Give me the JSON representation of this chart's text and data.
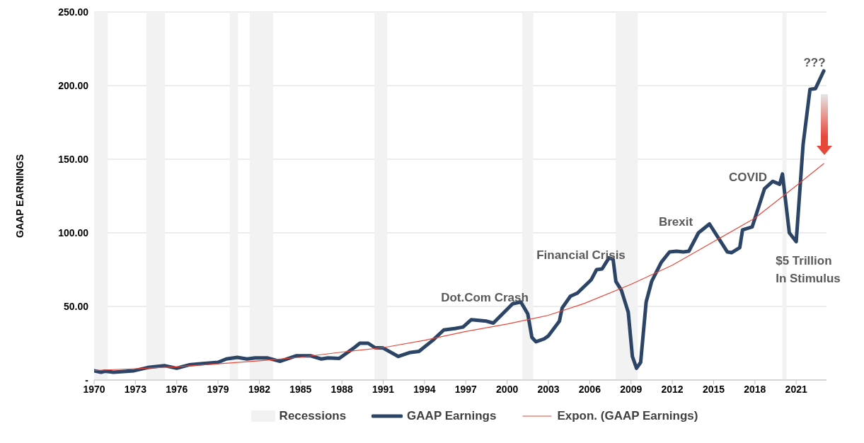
{
  "chart_data": {
    "type": "line",
    "ylabel": "GAAP EARNINGS",
    "xlim": [
      1970,
      2023.2
    ],
    "xticks": [
      1970,
      1973,
      1976,
      1979,
      1982,
      1985,
      1988,
      1991,
      1994,
      1997,
      2000,
      2003,
      2006,
      2009,
      2012,
      2015,
      2018,
      2021
    ],
    "ylim": [
      0,
      250
    ],
    "yticks": [
      {
        "value": 0,
        "label": "-"
      },
      {
        "value": 50,
        "label": "50.00"
      },
      {
        "value": 100,
        "label": "100.00"
      },
      {
        "value": 150,
        "label": "150.00"
      },
      {
        "value": 200,
        "label": "200.00"
      },
      {
        "value": 250,
        "label": "250.00"
      }
    ],
    "grid": "y",
    "legend": "bottom",
    "marker": "none",
    "line_style": "solid",
    "series": [
      {
        "name": "GAAP Earnings",
        "color": "#2c4566",
        "x": [
          1970.0,
          1970.5,
          1970.8,
          1971.4,
          1972.9,
          1973.9,
          1975.1,
          1976.0,
          1976.9,
          1977.9,
          1979.0,
          1979.6,
          1980.4,
          1981.1,
          1981.7,
          1982.6,
          1983.5,
          1984.7,
          1985.7,
          1986.5,
          1987.0,
          1987.8,
          1988.9,
          1989.3,
          1989.9,
          1990.4,
          1991.0,
          1992.1,
          1992.9,
          1993.6,
          1994.6,
          1995.4,
          1996.2,
          1996.8,
          1997.4,
          1998.5,
          1999.0,
          2000.4,
          2001.0,
          2001.5,
          2001.8,
          2002.1,
          2002.7,
          2003.0,
          2003.8,
          2004.0,
          2004.6,
          2005.1,
          2006.1,
          2006.5,
          2006.9,
          2007.4,
          2007.7,
          2007.9,
          2008.3,
          2008.8,
          2009.1,
          2009.4,
          2009.7,
          2010.1,
          2010.5,
          2011.2,
          2011.8,
          2012.3,
          2012.8,
          2013.2,
          2013.9,
          2014.7,
          2016.0,
          2016.3,
          2016.9,
          2017.1,
          2017.8,
          2018.7,
          2019.3,
          2019.8,
          2020.0,
          2020.5,
          2021.0,
          2021.5,
          2022.0,
          2022.4,
          2023.0
        ],
        "values": [
          6.3,
          5.3,
          6,
          5.3,
          6.3,
          8.5,
          9.8,
          8,
          10.3,
          11.2,
          12,
          14.3,
          15.4,
          14.3,
          15,
          15,
          12.7,
          16.5,
          16.5,
          14.3,
          15,
          14.7,
          22,
          25,
          25,
          22,
          21.7,
          16,
          18.6,
          19.5,
          27,
          34,
          35,
          36,
          41,
          40,
          38.7,
          51.8,
          53,
          45,
          29,
          26,
          28,
          30,
          40,
          49,
          57,
          59,
          68,
          75,
          75.5,
          83,
          82,
          67,
          61,
          46,
          16,
          8,
          12,
          53,
          67,
          80,
          87,
          87.5,
          87,
          87.5,
          100,
          106,
          87,
          86.5,
          90,
          102,
          104,
          130,
          135,
          133,
          140,
          100,
          94,
          160,
          197.5,
          198,
          210
        ]
      },
      {
        "name": "Expon. (GAAP Earnings)",
        "color": "#e8483a",
        "x": [
          1970,
          1973,
          1976,
          1979,
          1982,
          1985,
          1988,
          1991,
          1994,
          1997,
          2000,
          2003,
          2005.6,
          2009,
          2012,
          2015,
          2018,
          2021,
          2023
        ],
        "values": [
          6.5,
          7.7,
          9,
          11,
          13,
          15.5,
          19,
          22,
          27,
          33,
          38,
          44,
          52,
          65,
          78,
          94,
          110,
          132,
          147
        ]
      }
    ],
    "bands": [
      {
        "axis": "x",
        "from": 1970,
        "to": 1971,
        "label": "Recessions",
        "color": "#f2f2f2"
      },
      {
        "axis": "x",
        "from": 1973.8,
        "to": 1975.15,
        "color": "#f2f2f2"
      },
      {
        "axis": "x",
        "from": 1979.85,
        "to": 1980.46,
        "color": "#f2f2f2"
      },
      {
        "axis": "x",
        "from": 1981.3,
        "to": 1983,
        "color": "#f2f2f2"
      },
      {
        "axis": "x",
        "from": 1990.36,
        "to": 1991.3,
        "color": "#f2f2f2"
      },
      {
        "axis": "x",
        "from": 2001.1,
        "to": 2001.9,
        "color": "#f2f2f2"
      },
      {
        "axis": "x",
        "from": 2007.9,
        "to": 2009.5,
        "color": "#f2f2f2"
      },
      {
        "axis": "x",
        "from": 2020.0,
        "to": 2020.3,
        "color": "#f2f2f2"
      }
    ],
    "annotations": [
      "Dot.Com Crash",
      "Financial Crisis",
      "Brexit",
      "COVID",
      "$5 Trillion\nIn Stimulus",
      "???"
    ]
  }
}
